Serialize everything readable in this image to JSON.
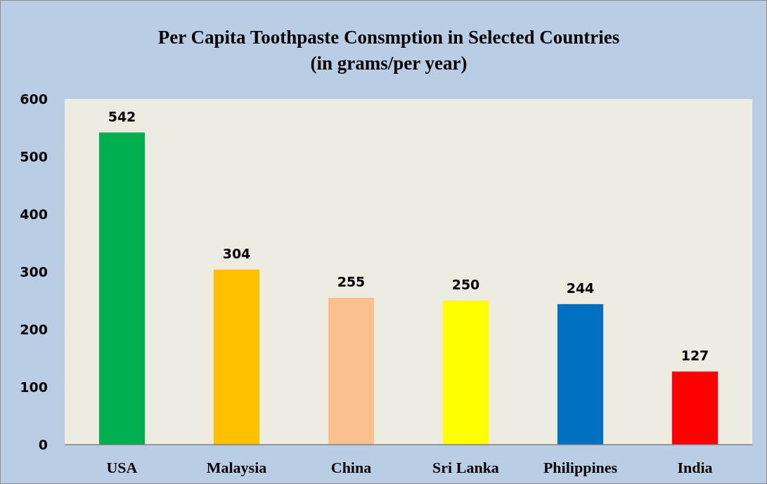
{
  "chart_data": {
    "type": "bar",
    "title": "Per Capita Toothpaste Consmption in Selected Countries",
    "subtitle": "(in grams/per year)",
    "categories": [
      "USA",
      "Malaysia",
      "China",
      "Sri Lanka",
      "Philippines",
      "India"
    ],
    "values": [
      542,
      304,
      255,
      250,
      244,
      127
    ],
    "colors": [
      "#00b050",
      "#ffc000",
      "#fac090",
      "#ffff00",
      "#0070c0",
      "#ff0000"
    ],
    "ylim": [
      0,
      600
    ],
    "yticks": [
      0,
      100,
      200,
      300,
      400,
      500,
      600
    ],
    "data_labels": true,
    "grid": false
  }
}
